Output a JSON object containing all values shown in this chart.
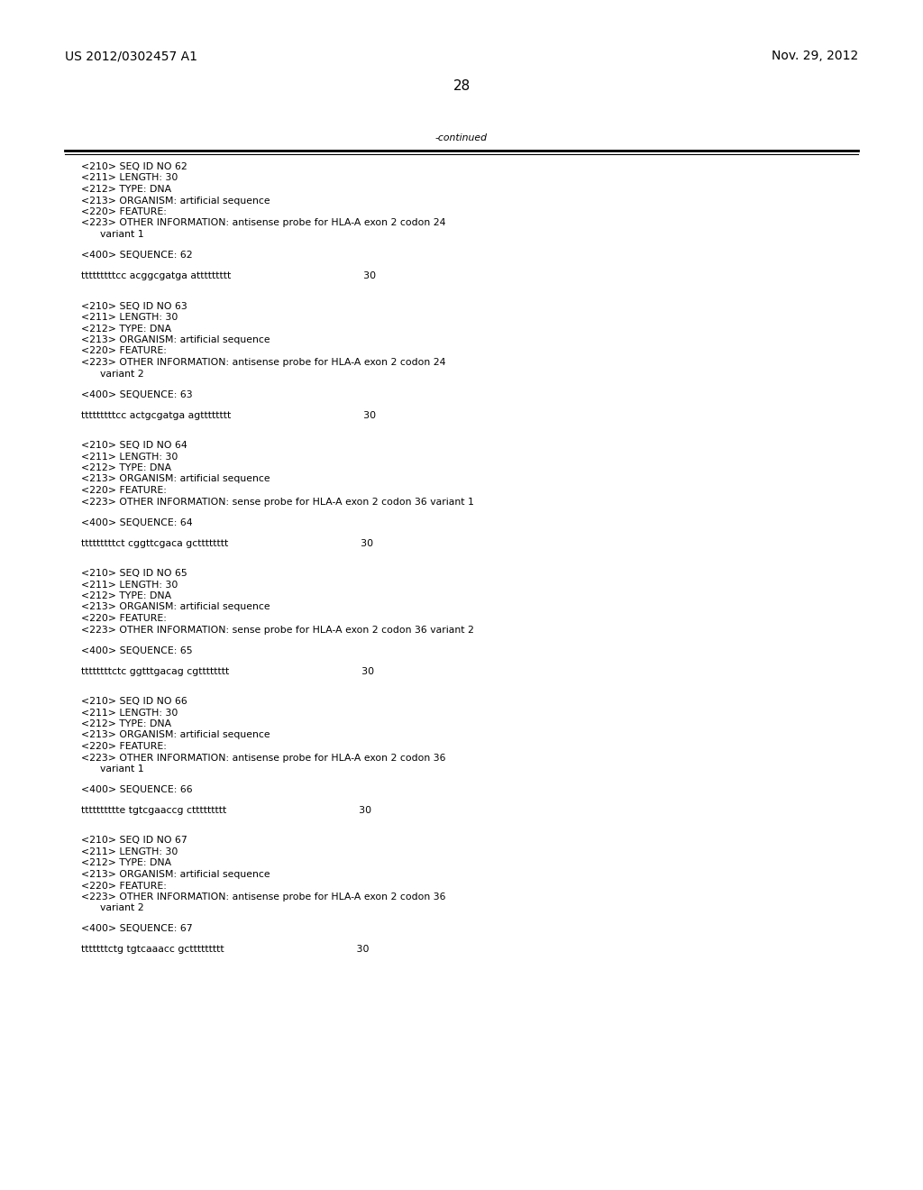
{
  "header_left": "US 2012/0302457 A1",
  "header_right": "Nov. 29, 2012",
  "page_number": "28",
  "continued_label": "-continued",
  "background_color": "#ffffff",
  "text_color": "#000000",
  "font_size_header": 10.0,
  "font_size_page": 11.0,
  "font_size_body": 7.8,
  "sections_text": [
    [
      "<210> SEQ ID NO 62",
      "<211> LENGTH: 30",
      "<212> TYPE: DNA",
      "<213> ORGANISM: artificial sequence",
      "<220> FEATURE:",
      "<223> OTHER INFORMATION: antisense probe for HLA-A exon 2 codon 24",
      "      variant 1",
      "",
      "<400> SEQUENCE: 62",
      "",
      "tttttttttcc acggcgatga attttttttt                                          30",
      "",
      ""
    ],
    [
      "<210> SEQ ID NO 63",
      "<211> LENGTH: 30",
      "<212> TYPE: DNA",
      "<213> ORGANISM: artificial sequence",
      "<220> FEATURE:",
      "<223> OTHER INFORMATION: antisense probe for HLA-A exon 2 codon 24",
      "      variant 2",
      "",
      "<400> SEQUENCE: 63",
      "",
      "tttttttttcc actgcgatga agtttttttt                                          30",
      "",
      ""
    ],
    [
      "<210> SEQ ID NO 64",
      "<211> LENGTH: 30",
      "<212> TYPE: DNA",
      "<213> ORGANISM: artificial sequence",
      "<220> FEATURE:",
      "<223> OTHER INFORMATION: sense probe for HLA-A exon 2 codon 36 variant 1",
      "",
      "<400> SEQUENCE: 64",
      "",
      "tttttttttct cggttcgaca gctttttttt                                          30",
      "",
      ""
    ],
    [
      "<210> SEQ ID NO 65",
      "<211> LENGTH: 30",
      "<212> TYPE: DNA",
      "<213> ORGANISM: artificial sequence",
      "<220> FEATURE:",
      "<223> OTHER INFORMATION: sense probe for HLA-A exon 2 codon 36 variant 2",
      "",
      "<400> SEQUENCE: 65",
      "",
      "ttttttttctc ggtttgacag cgtttttttt                                          30",
      "",
      ""
    ],
    [
      "<210> SEQ ID NO 66",
      "<211> LENGTH: 30",
      "<212> TYPE: DNA",
      "<213> ORGANISM: artificial sequence",
      "<220> FEATURE:",
      "<223> OTHER INFORMATION: antisense probe for HLA-A exon 2 codon 36",
      "      variant 1",
      "",
      "<400> SEQUENCE: 66",
      "",
      "tttttttttte tgtcgaaccg cttttttttt                                          30",
      "",
      ""
    ],
    [
      "<210> SEQ ID NO 67",
      "<211> LENGTH: 30",
      "<212> TYPE: DNA",
      "<213> ORGANISM: artificial sequence",
      "<220> FEATURE:",
      "<223> OTHER INFORMATION: antisense probe for HLA-A exon 2 codon 36",
      "      variant 2",
      "",
      "<400> SEQUENCE: 67",
      "",
      "tttttttctg tgtcaaacc gcttttttttt                                          30"
    ]
  ]
}
